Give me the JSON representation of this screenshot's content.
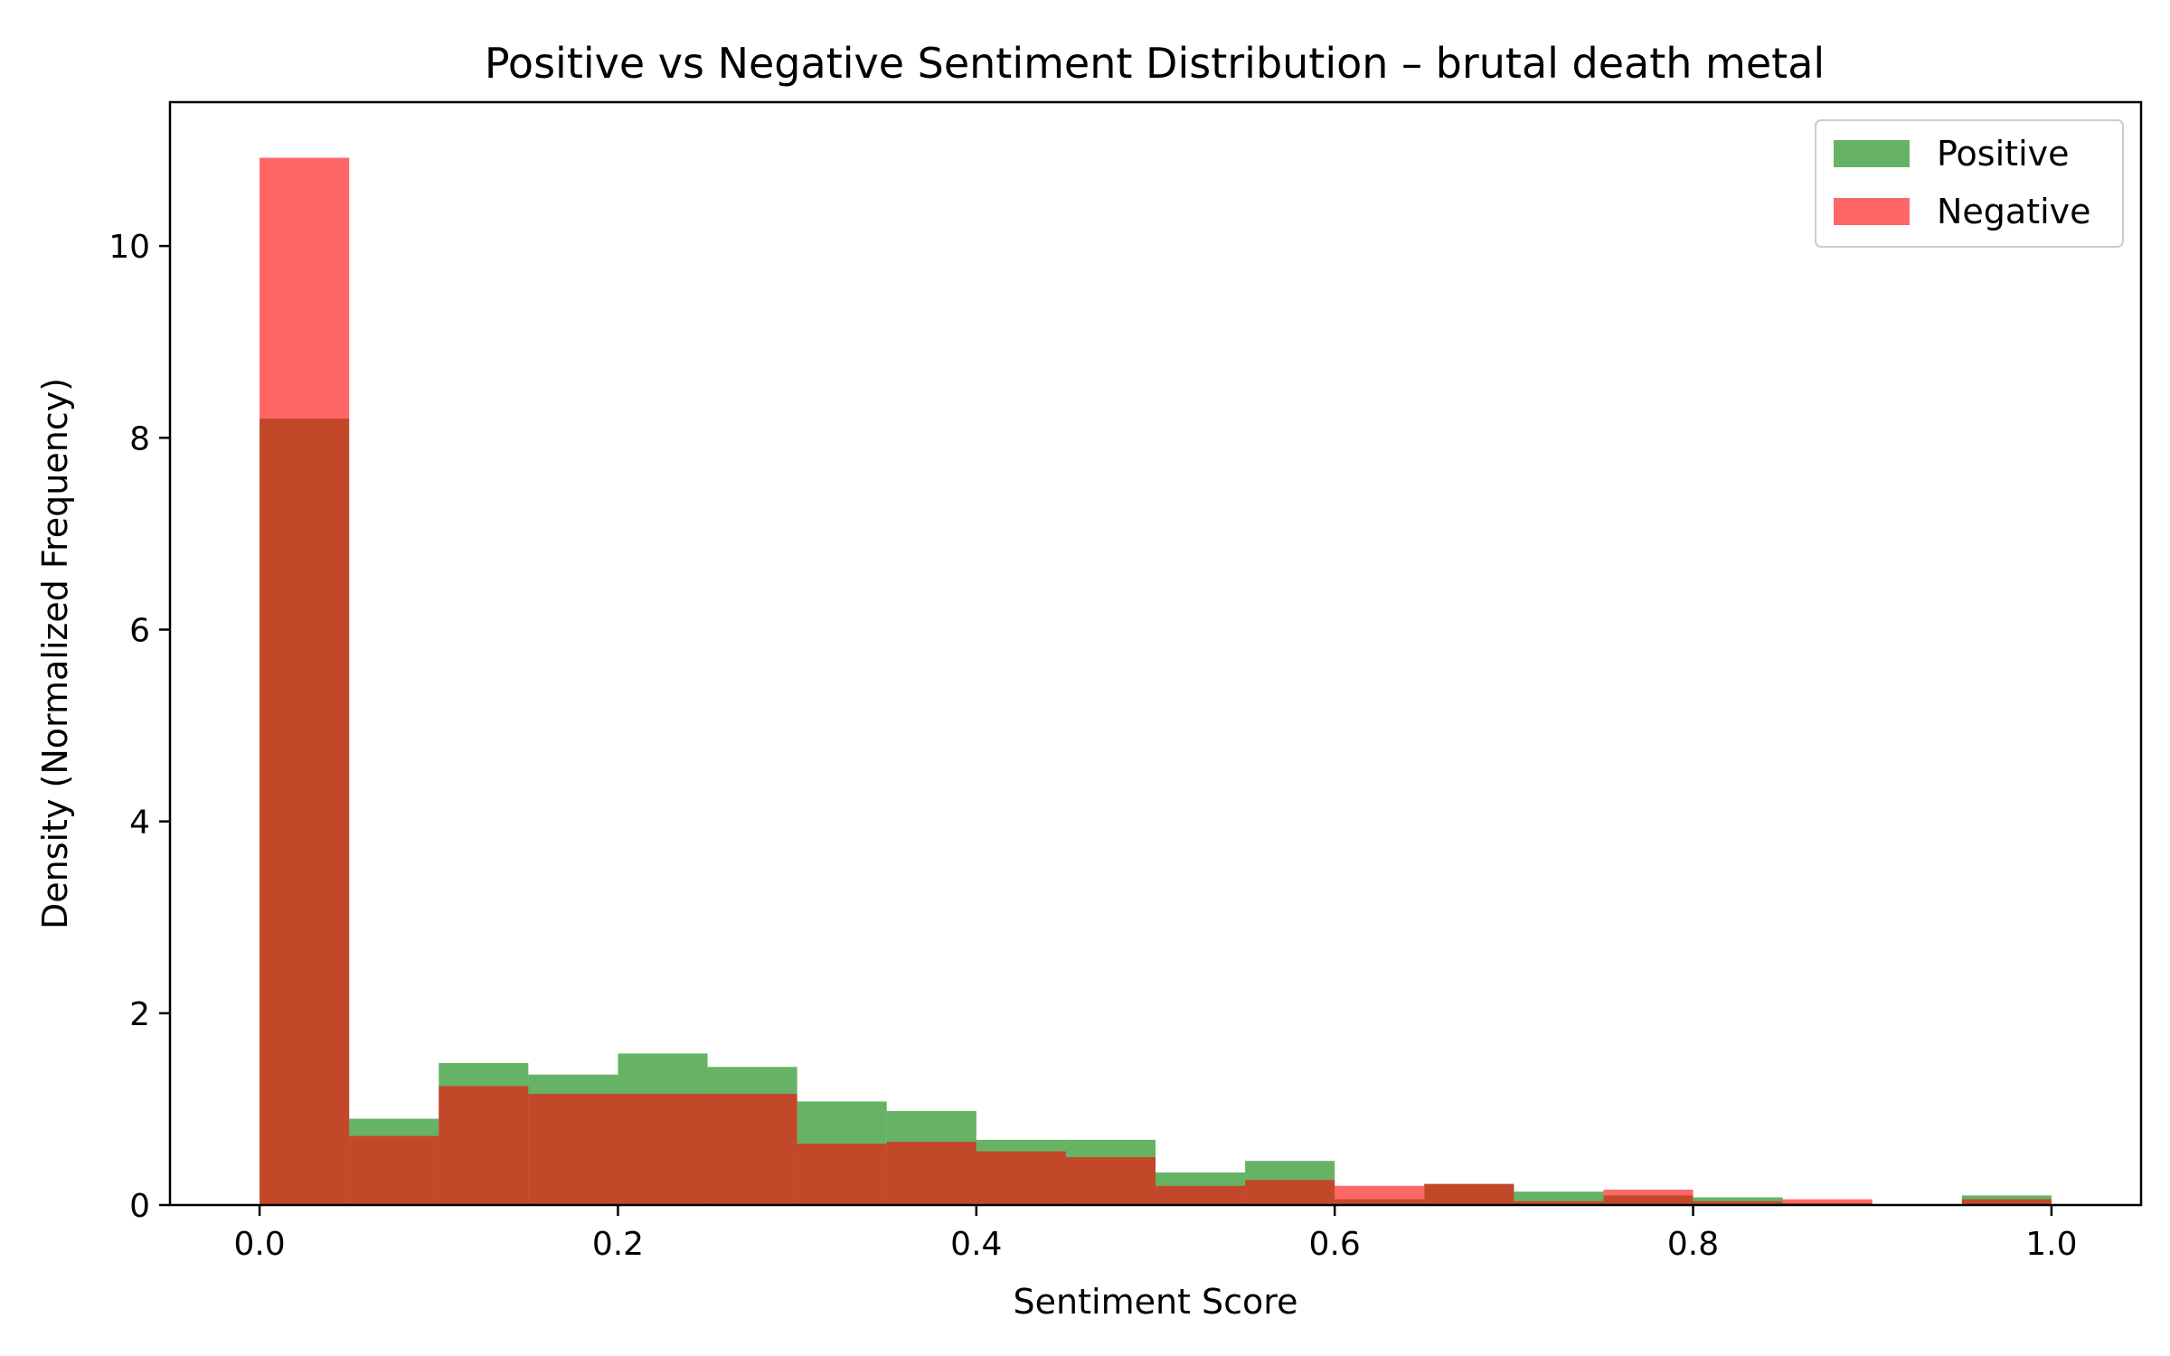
{
  "chart_data": {
    "type": "bar",
    "title": "Positive vs Negative Sentiment Distribution – brutal death metal",
    "xlabel": "Sentiment Score",
    "ylabel": "Density (Normalized Frequency)",
    "xlim": [
      -0.05,
      1.05
    ],
    "ylim": [
      0,
      11.5
    ],
    "xticks": [
      "0.0",
      "0.2",
      "0.4",
      "0.6",
      "0.8",
      "1.0"
    ],
    "yticks": [
      "0",
      "2",
      "4",
      "6",
      "8",
      "10"
    ],
    "bin_edges": [
      0.0,
      0.05,
      0.1,
      0.15,
      0.2,
      0.25,
      0.3,
      0.35,
      0.4,
      0.45,
      0.5,
      0.55,
      0.6,
      0.65,
      0.7,
      0.75,
      0.8,
      0.85,
      0.9,
      0.95,
      1.0
    ],
    "grid": false,
    "legend_position": "top-right",
    "series": [
      {
        "name": "Positive",
        "color": "#008000",
        "alpha": 0.6,
        "values": [
          8.2,
          0.9,
          1.48,
          1.36,
          1.58,
          1.44,
          1.08,
          0.98,
          0.68,
          0.68,
          0.34,
          0.46,
          0.06,
          0.22,
          0.14,
          0.1,
          0.08,
          0.02,
          0.0,
          0.1
        ]
      },
      {
        "name": "Negative",
        "color": "#ff0000",
        "alpha": 0.6,
        "values": [
          10.92,
          0.72,
          1.24,
          1.16,
          1.16,
          1.16,
          0.64,
          0.66,
          0.56,
          0.5,
          0.2,
          0.26,
          0.2,
          0.22,
          0.04,
          0.16,
          0.04,
          0.06,
          0.0,
          0.06
        ]
      }
    ]
  }
}
